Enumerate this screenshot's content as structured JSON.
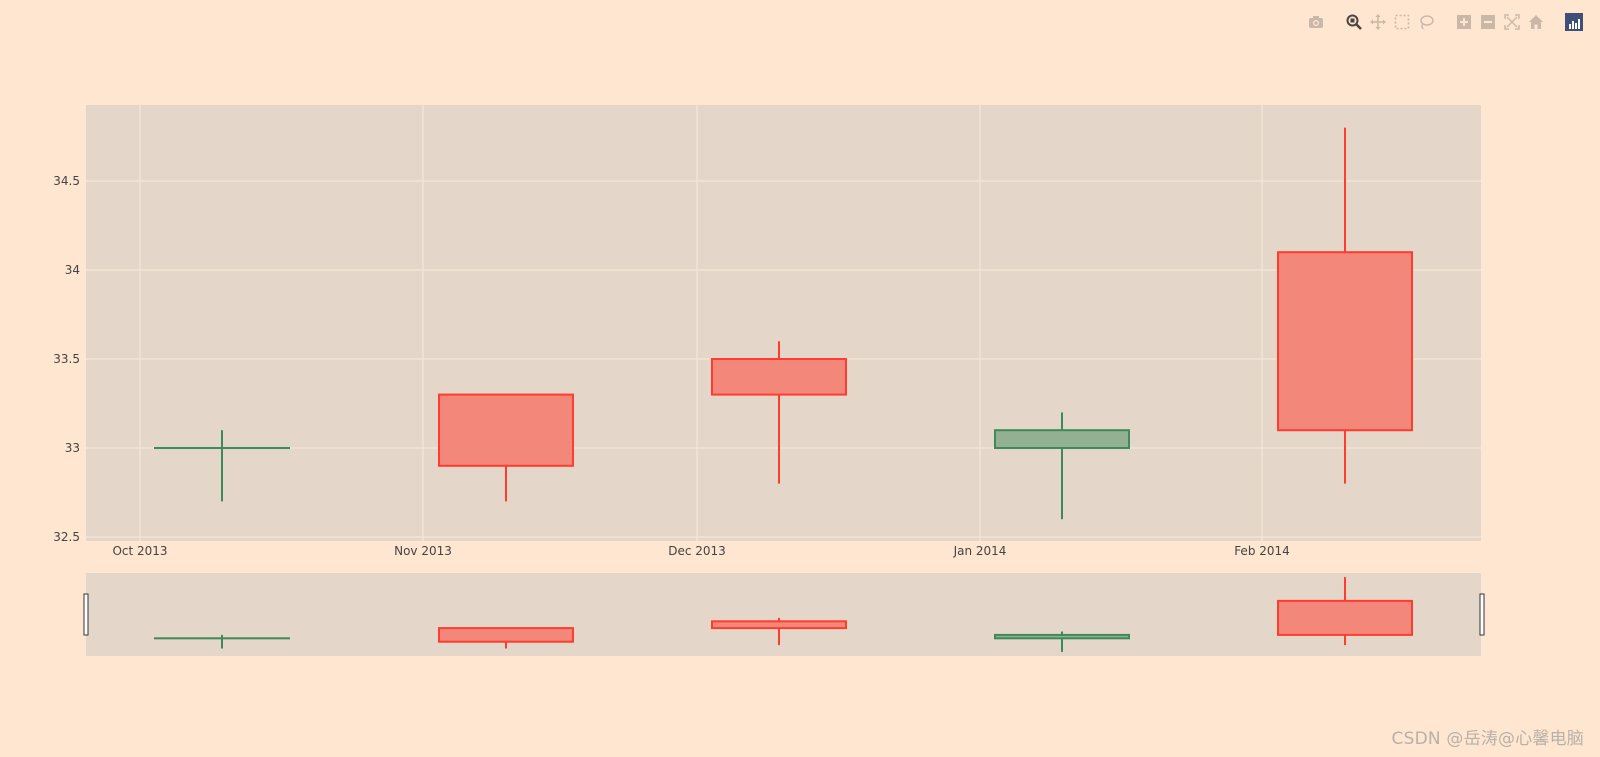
{
  "modebar": {
    "buttons": [
      {
        "name": "camera-icon",
        "title": "Download plot as png"
      },
      {
        "name": "zoom-icon",
        "title": "Zoom",
        "active": true
      },
      {
        "name": "pan-icon",
        "title": "Pan"
      },
      {
        "name": "box-select-icon",
        "title": "Box Select"
      },
      {
        "name": "lasso-select-icon",
        "title": "Lasso Select"
      },
      {
        "name": "zoom-in-icon",
        "title": "Zoom in"
      },
      {
        "name": "zoom-out-icon",
        "title": "Zoom out"
      },
      {
        "name": "autoscale-icon",
        "title": "Autoscale"
      },
      {
        "name": "reset-axes-icon",
        "title": "Reset axes"
      },
      {
        "name": "plotly-logo-icon",
        "title": "Produced with Plotly"
      }
    ]
  },
  "colors": {
    "paper_bg": "#ffe6d0",
    "plot_bg": "#e4d6c8",
    "grid": "#fbe9d7",
    "increasing_line": "#3d8b5a",
    "increasing_fill": "#93b092",
    "decreasing_line": "#ff3c2e",
    "decreasing_fill": "#f3887a"
  },
  "chart_data": {
    "type": "candlestick",
    "title": "",
    "xlabel": "",
    "ylabel": "",
    "x_tick_labels": [
      "Oct 2013",
      "Nov 2013",
      "Dec 2013",
      "Jan 2014",
      "Feb 2014"
    ],
    "y_tick_labels": [
      "32.5",
      "33",
      "33.5",
      "34",
      "34.5"
    ],
    "y_ticks": [
      32.5,
      33,
      33.5,
      34,
      34.5
    ],
    "ylim": [
      32.48,
      34.92
    ],
    "grid": true,
    "legend": false,
    "rangeslider": true,
    "series": [
      {
        "name": "candles",
        "x": [
          "2013-10-10",
          "2013-11-10",
          "2013-12-10",
          "2014-01-10",
          "2014-02-10"
        ],
        "open": [
          33.0,
          33.3,
          33.5,
          33.0,
          34.1
        ],
        "high": [
          33.1,
          33.3,
          33.6,
          33.2,
          34.8
        ],
        "low": [
          32.7,
          32.7,
          32.8,
          32.6,
          32.8
        ],
        "close": [
          33.0,
          32.9,
          33.3,
          33.1,
          33.1
        ]
      }
    ]
  },
  "watermark": "CSDN @岳涛@心馨电脑"
}
